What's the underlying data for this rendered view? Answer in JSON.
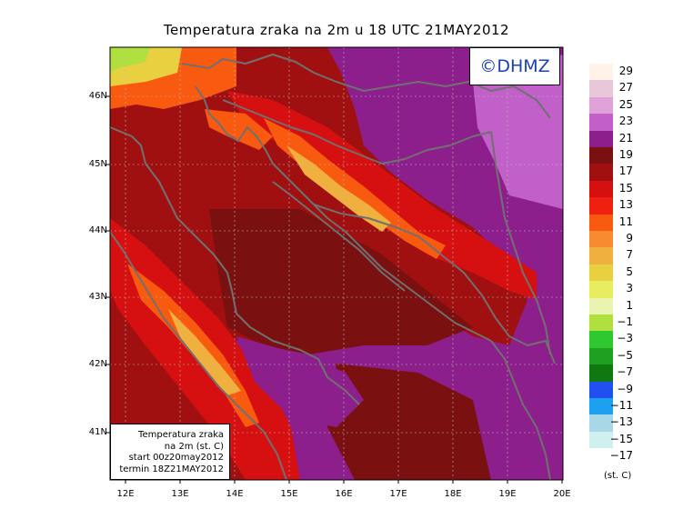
{
  "title": "Temperatura zraka na 2m u 18 UTC 21MAY2012",
  "watermark": "©DHMZ",
  "info": {
    "line1": "Temperatura zraka",
    "line2": "na 2m (st. C)",
    "line3": "start 00z20may2012",
    "line4": "termin 18Z21MAY2012"
  },
  "lat_labels": [
    "46N",
    "45N",
    "44N",
    "43N",
    "42N",
    "41N"
  ],
  "lon_labels": [
    "12E",
    "13E",
    "14E",
    "15E",
    "16E",
    "17E",
    "18E",
    "19E",
    "20E"
  ],
  "legend": {
    "units": "(st. C)",
    "items": [
      {
        "label": "29",
        "color": "#fff2e6"
      },
      {
        "label": "27",
        "color": "#e8c8d8"
      },
      {
        "label": "25",
        "color": "#e0a0d8"
      },
      {
        "label": "23",
        "color": "#c060c8"
      },
      {
        "label": "21",
        "color": "#8c1f8c"
      },
      {
        "label": "19",
        "color": "#7a1010"
      },
      {
        "label": "17",
        "color": "#a01010"
      },
      {
        "label": "15",
        "color": "#d61010"
      },
      {
        "label": "13",
        "color": "#f02010"
      },
      {
        "label": "11",
        "color": "#f85a10"
      },
      {
        "label": "9",
        "color": "#f88a30"
      },
      {
        "label": "7",
        "color": "#f0b040"
      },
      {
        "label": "5",
        "color": "#e8d040"
      },
      {
        "label": "3",
        "color": "#e8ec60"
      },
      {
        "label": "1",
        "color": "#e8f4b0"
      },
      {
        "label": "−1",
        "color": "#b0e040"
      },
      {
        "label": "−3",
        "color": "#30c830"
      },
      {
        "label": "−5",
        "color": "#20a020"
      },
      {
        "label": "−7",
        "color": "#107810"
      },
      {
        "label": "−9",
        "color": "#2050f0"
      },
      {
        "label": "−11",
        "color": "#1ea0f0"
      },
      {
        "label": "−13",
        "color": "#a8d8e8"
      },
      {
        "label": "−15",
        "color": "#d0f0f0"
      },
      {
        "label": "−17",
        "color": "#ffffff"
      }
    ]
  },
  "colors": {
    "purple": "#8c1f8c",
    "light_purple": "#c060c8",
    "dark_red": "#7a1010",
    "red": "#d61010",
    "orange": "#f85a10",
    "yellow": "#e8d040",
    "coast": "#707070"
  }
}
